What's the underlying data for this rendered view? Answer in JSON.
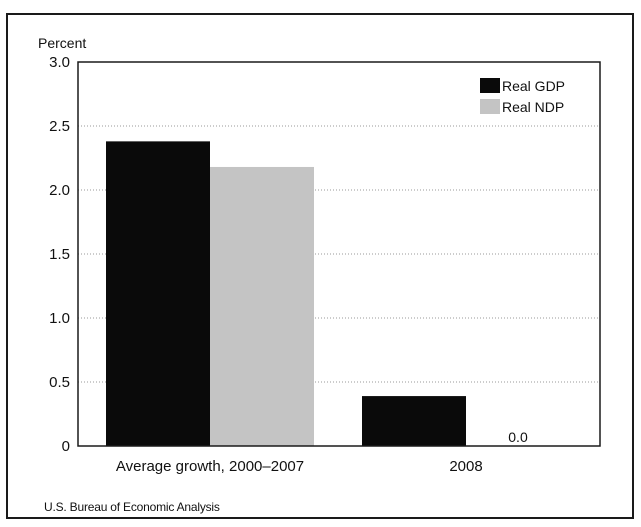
{
  "chart_data": {
    "type": "bar",
    "ylabel": "Percent",
    "categories": [
      "Average growth, 2000–2007",
      "2008"
    ],
    "series": [
      {
        "name": "Real GDP",
        "color": "#0a0a0a",
        "values": [
          2.38,
          0.39
        ]
      },
      {
        "name": "Real NDP",
        "color": "#c4c4c4",
        "values": [
          2.18,
          0.0
        ]
      }
    ],
    "data_labels": [
      {
        "series": 1,
        "category": 1,
        "text": "0.0"
      }
    ],
    "ylim": [
      0,
      3.0
    ],
    "yticks": [
      "0",
      "0.5",
      "1.0",
      "1.5",
      "2.0",
      "2.5",
      "3.0"
    ],
    "ytick_values": [
      0,
      0.5,
      1.0,
      1.5,
      2.0,
      2.5,
      3.0
    ],
    "grid": "horizontal dotted",
    "legend_position": "top-right"
  },
  "source": "U.S. Bureau of Economic Analysis"
}
